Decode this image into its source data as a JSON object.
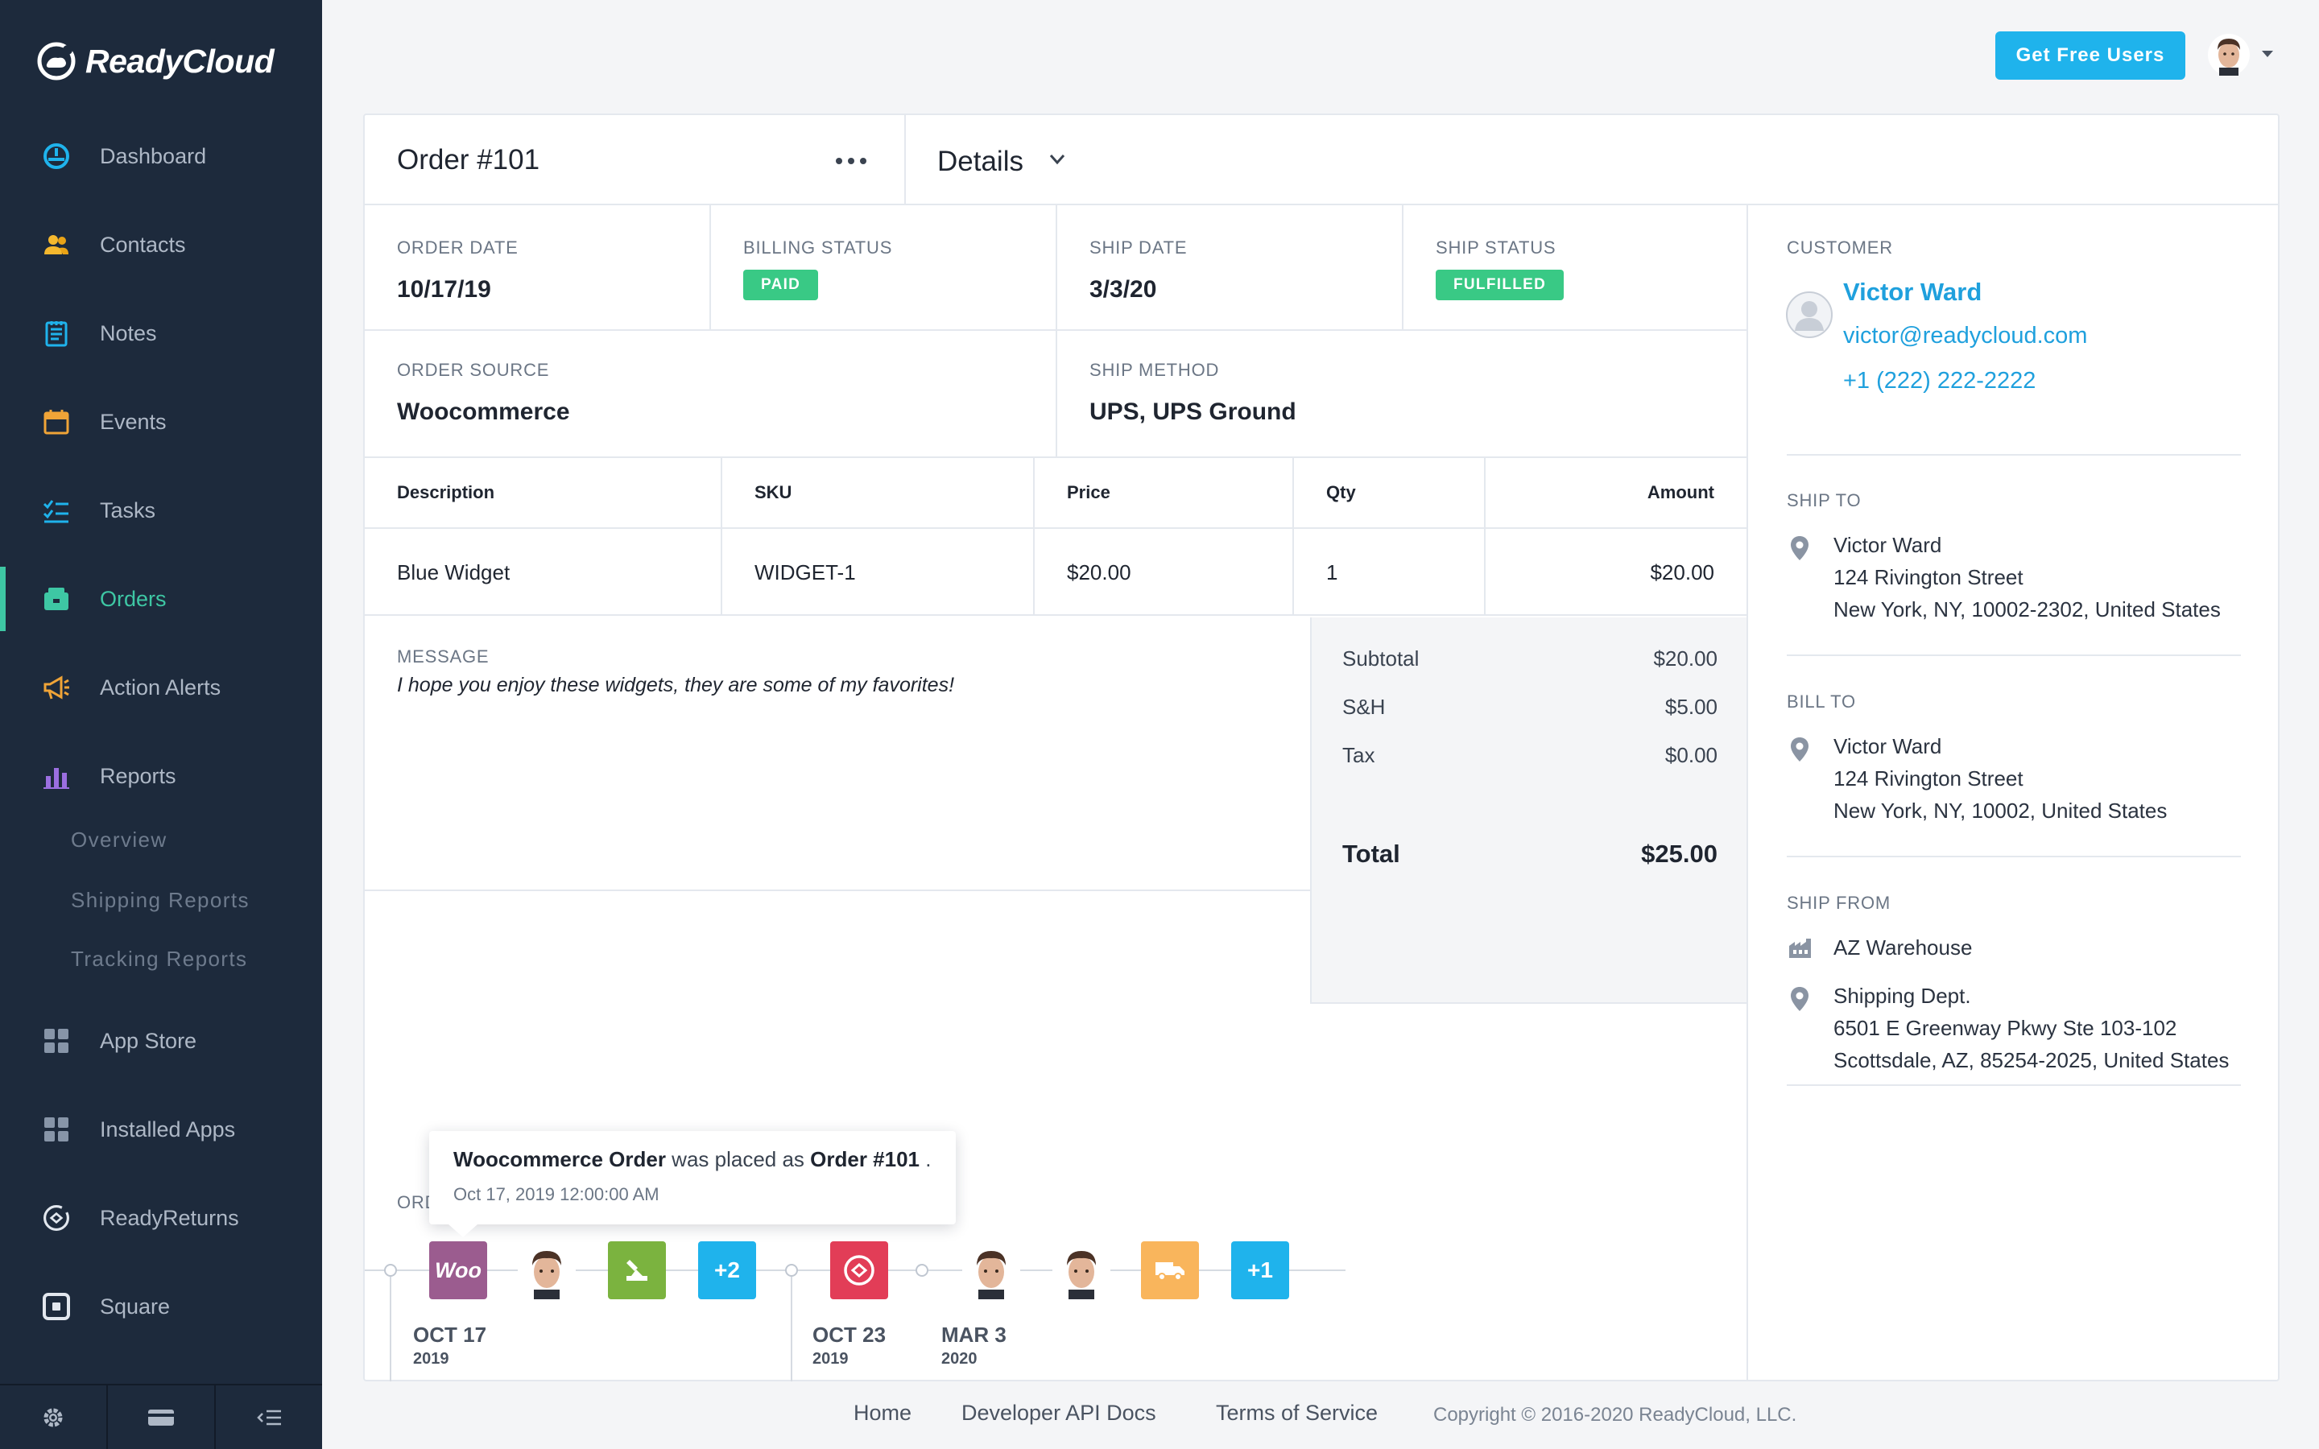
{
  "brand": {
    "name": "ReadyCloud"
  },
  "sidebar": {
    "items": [
      {
        "label": "Dashboard"
      },
      {
        "label": "Contacts"
      },
      {
        "label": "Notes"
      },
      {
        "label": "Events"
      },
      {
        "label": "Tasks"
      },
      {
        "label": "Orders"
      },
      {
        "label": "Action Alerts"
      },
      {
        "label": "Reports"
      },
      {
        "label": "App Store"
      },
      {
        "label": "Installed Apps"
      },
      {
        "label": "ReadyReturns"
      },
      {
        "label": "Square"
      }
    ],
    "subitems": [
      {
        "label": "Overview"
      },
      {
        "label": "Shipping Reports"
      },
      {
        "label": "Tracking Reports"
      }
    ],
    "active": "Orders"
  },
  "topbar": {
    "cta_label": "Get Free Users"
  },
  "order": {
    "title": "Order #101",
    "view_label": "Details",
    "order_date": {
      "label": "ORDER DATE",
      "value": "10/17/19"
    },
    "billing_status": {
      "label": "BILLING STATUS",
      "value": "PAID"
    },
    "ship_date": {
      "label": "SHIP DATE",
      "value": "3/3/20"
    },
    "ship_status": {
      "label": "SHIP STATUS",
      "value": "FULFILLED"
    },
    "order_source": {
      "label": "ORDER SOURCE",
      "value": "Woocommerce"
    },
    "ship_method": {
      "label": "SHIP METHOD",
      "value": "UPS, UPS Ground"
    },
    "table": {
      "headers": [
        "Description",
        "SKU",
        "Price",
        "Qty",
        "Amount"
      ],
      "rows": [
        [
          "Blue Widget",
          "WIDGET-1",
          "$20.00",
          "1",
          "$20.00"
        ]
      ]
    },
    "message": {
      "label": "MESSAGE",
      "text": "I hope you enjoy these widgets, they are some of my favorites!"
    },
    "totals": {
      "subtotal": {
        "label": "Subtotal",
        "value": "$20.00"
      },
      "sh": {
        "label": "S&H",
        "value": "$5.00"
      },
      "tax": {
        "label": "Tax",
        "value": "$0.00"
      },
      "total": {
        "label": "Total",
        "value": "$25.00"
      }
    }
  },
  "customer": {
    "label": "CUSTOMER",
    "name": "Victor Ward",
    "email": "victor@readycloud.com",
    "phone": "+1 (222) 222-2222"
  },
  "ship_to": {
    "label": "SHIP TO",
    "lines": [
      "Victor Ward",
      "124 Rivington Street",
      "New York, NY, 10002-2302, United States"
    ]
  },
  "bill_to": {
    "label": "BILL TO",
    "lines": [
      "Victor Ward",
      "124 Rivington Street",
      "New York, NY, 10002, United States"
    ]
  },
  "ship_from": {
    "label": "SHIP FROM",
    "warehouse": "AZ Warehouse",
    "lines": [
      "Shipping Dept.",
      "6501 E Greenway Pkwy Ste 103-102",
      "Scottsdale, AZ, 85254-2025, United States"
    ]
  },
  "timeline": {
    "label_partial": "ORD",
    "groups": [
      {
        "date": "OCT 17",
        "year": "2019"
      },
      {
        "date": "OCT 23",
        "year": "2019"
      },
      {
        "date": "MAR 3",
        "year": "2020"
      }
    ],
    "badges": {
      "woo": "Woo",
      "plus2": "+2",
      "plus1": "+1"
    },
    "tooltip": {
      "source": "Woocommerce Order",
      "middle": " was placed as ",
      "order": "Order #101",
      "end": " .",
      "timestamp": "Oct 17, 2019 12:00:00 AM"
    }
  },
  "footer": {
    "links": [
      "Home",
      "Developer API Docs",
      "Terms of Service"
    ],
    "copyright": "Copyright © 2016-2020 ReadyCloud, LLC."
  },
  "colors": {
    "sidebar_bg": "#1d2a3c",
    "accent_green": "#3ec7a4",
    "link_blue": "#1fa0dd",
    "cta_blue": "#1fb3ec",
    "status_green": "#39c985"
  }
}
